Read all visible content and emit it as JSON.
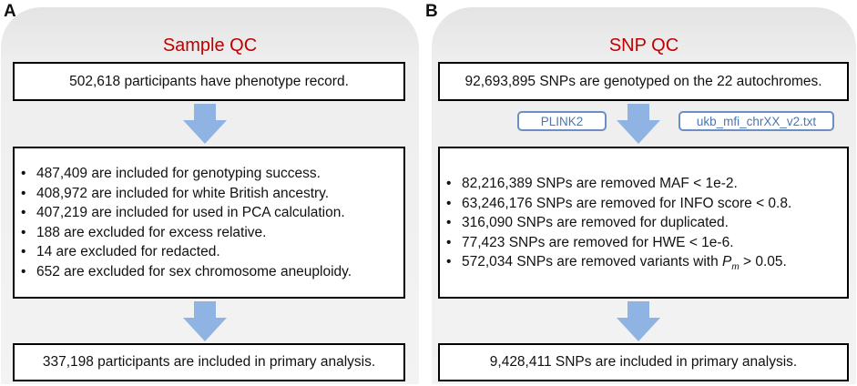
{
  "panelA": {
    "letter": "A",
    "title": "Sample QC",
    "top_box": "502,618 participants have phenotype record.",
    "criteria": [
      "487,409 are included for genotyping success.",
      "408,972 are included for white British ancestry.",
      "407,219 are included for used in PCA calculation.",
      "188 are excluded for excess relative.",
      "14 are excluded for redacted.",
      "652 are excluded for sex chromosome aneuploidy."
    ],
    "bottom_box": "337,198 participants are included in primary analysis."
  },
  "panelB": {
    "letter": "B",
    "title": "SNP QC",
    "top_box": "92,693,895 SNPs are genotyped on the 22 autochromes.",
    "tool_tags": [
      "PLINK2",
      "ukb_mfi_chrXX_v2.txt"
    ],
    "criteria": [
      "82,216,389 SNPs are removed MAF < 1e-2.",
      "63,246,176 SNPs are removed for INFO score < 0.8.",
      "316,090 SNPs are removed for duplicated.",
      "77,423 SNPs are removed for HWE < 1e-6."
    ],
    "last_criterion": {
      "prefix": "572,034 SNPs are removed variants with ",
      "symbol": "P",
      "subscript": "m",
      "suffix": " > 0.05."
    },
    "bottom_box": "9,428,411 SNPs are included in primary analysis."
  },
  "colors": {
    "title_red": "#c00000",
    "arrow_blue": "#8fb4e3",
    "tag_border": "#6a8fc0",
    "panel_gray": "#efefef"
  }
}
